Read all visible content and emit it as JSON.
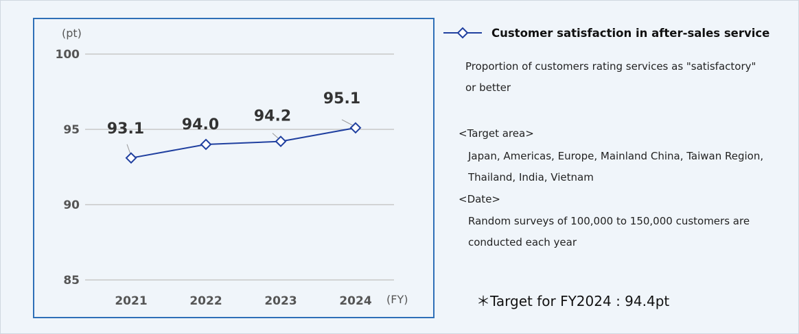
{
  "chart_data": {
    "type": "line",
    "categories": [
      "2021",
      "2022",
      "2023",
      "2024"
    ],
    "series": [
      {
        "name": "Customer satisfaction in after-sales service",
        "values": [
          93.1,
          94.0,
          94.2,
          95.1
        ],
        "color": "#1f3f9f",
        "marker": "diamond-hollow"
      }
    ],
    "data_labels": [
      "93.1",
      "94.0",
      "94.2",
      "95.1"
    ],
    "ylim": [
      85,
      100
    ],
    "yticks": [
      "85",
      "90",
      "95",
      "100"
    ],
    "yunit": "(pt)",
    "xunit": "(FY)",
    "grid": true,
    "legend_placement": "right"
  },
  "legend": {
    "label": "Customer satisfaction in after-sales service"
  },
  "notes": {
    "description_1": "Proportion of customers rating services as \"satisfactory\"",
    "description_2": "or better",
    "target_area_heading": "<Target area>",
    "target_area_1": "Japan, Americas, Europe, Mainland China, Taiwan Region,",
    "target_area_2": "Thailand, India, Vietnam",
    "date_heading": "<Date>",
    "date_1": "Random surveys of 100,000 to 150,000 customers are",
    "date_2": "conducted each year",
    "target": "＊Target for FY2024 : 94.4pt"
  }
}
